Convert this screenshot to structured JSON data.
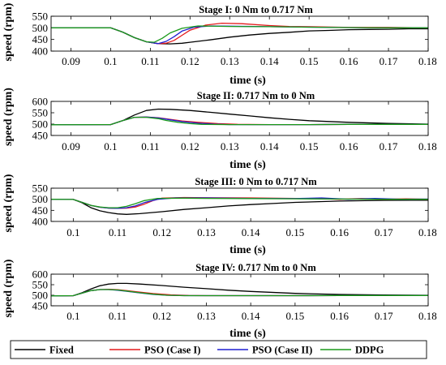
{
  "colors": {
    "Fixed": "#000000",
    "PSO (Case I)": "#e41a1c",
    "PSO (Case II)": "#1f1fd0",
    "DDPG": "#1a9a1a"
  },
  "legend": {
    "items": [
      "Fixed",
      "PSO (Case I)",
      "PSO (Case II)",
      "DDPG"
    ],
    "placement": "bottom"
  },
  "chart_data": [
    {
      "type": "line",
      "title": "Stage I: 0 Nm to 0.717 Nm",
      "xlabel": "time (s)",
      "ylabel": "speed (rpm)",
      "xlim": [
        0.085,
        0.18
      ],
      "ylim": [
        400,
        550
      ],
      "xticks": [
        "0.09",
        "0.1",
        "0.11",
        "0.12",
        "0.13",
        "0.14",
        "0.15",
        "0.16",
        "0.17",
        "0.18"
      ],
      "xtick_values": [
        0.09,
        0.1,
        0.11,
        0.12,
        0.13,
        0.14,
        0.15,
        0.16,
        0.17,
        0.18
      ],
      "yticks": [
        "400",
        "450",
        "500",
        "550"
      ],
      "ytick_values": [
        400,
        450,
        500,
        550
      ],
      "series": [
        {
          "name": "Fixed",
          "x": [
            0.085,
            0.1,
            0.103,
            0.106,
            0.109,
            0.112,
            0.115,
            0.118,
            0.12,
            0.125,
            0.13,
            0.135,
            0.14,
            0.145,
            0.15,
            0.155,
            0.16,
            0.165,
            0.17,
            0.175,
            0.18
          ],
          "y": [
            500,
            500,
            482,
            458,
            440,
            432,
            431,
            434,
            438,
            448,
            460,
            469,
            476,
            481,
            487,
            489,
            492,
            493,
            494,
            496,
            496
          ]
        },
        {
          "name": "PSO (Case I)",
          "x": [
            0.085,
            0.1,
            0.103,
            0.106,
            0.109,
            0.112,
            0.114,
            0.116,
            0.118,
            0.12,
            0.124,
            0.128,
            0.133,
            0.14,
            0.145,
            0.15,
            0.16,
            0.17,
            0.18
          ],
          "y": [
            500,
            500,
            482,
            458,
            440,
            432,
            434,
            446,
            468,
            490,
            512,
            520,
            518,
            510,
            506,
            505,
            502,
            502,
            500
          ]
        },
        {
          "name": "PSO (Case II)",
          "x": [
            0.085,
            0.1,
            0.103,
            0.106,
            0.109,
            0.112,
            0.114,
            0.116,
            0.118,
            0.121,
            0.125,
            0.13,
            0.14,
            0.15,
            0.16,
            0.17,
            0.18
          ],
          "y": [
            500,
            500,
            482,
            458,
            440,
            432,
            442,
            462,
            486,
            503,
            508,
            507,
            505,
            503,
            501,
            500,
            500
          ]
        },
        {
          "name": "DDPG",
          "x": [
            0.085,
            0.1,
            0.103,
            0.106,
            0.109,
            0.111,
            0.113,
            0.115,
            0.118,
            0.122,
            0.13,
            0.14,
            0.15,
            0.16,
            0.17,
            0.18
          ],
          "y": [
            500,
            500,
            482,
            458,
            440,
            438,
            455,
            478,
            498,
            508,
            506,
            505,
            503,
            501,
            500,
            500
          ]
        }
      ]
    },
    {
      "type": "line",
      "title": "Stage II: 0.717 Nm to 0 Nm",
      "xlabel": "time (s)",
      "ylabel": "speed (rpm)",
      "xlim": [
        0.085,
        0.18
      ],
      "ylim": [
        450,
        600
      ],
      "xticks": [
        "0.09",
        "0.1",
        "0.11",
        "0.12",
        "0.13",
        "0.14",
        "0.15",
        "0.16",
        "0.17",
        "0.18"
      ],
      "xtick_values": [
        0.09,
        0.1,
        0.11,
        0.12,
        0.13,
        0.14,
        0.15,
        0.16,
        0.17,
        0.18
      ],
      "yticks": [
        "450",
        "500",
        "550",
        "600"
      ],
      "ytick_values": [
        450,
        500,
        550,
        600
      ],
      "series": [
        {
          "name": "Fixed",
          "x": [
            0.085,
            0.1,
            0.103,
            0.106,
            0.109,
            0.112,
            0.115,
            0.12,
            0.125,
            0.13,
            0.135,
            0.14,
            0.145,
            0.15,
            0.16,
            0.17,
            0.18
          ],
          "y": [
            497,
            498,
            515,
            540,
            560,
            566,
            565,
            560,
            552,
            544,
            536,
            528,
            521,
            515,
            508,
            503,
            500
          ]
        },
        {
          "name": "PSO (Case I)",
          "x": [
            0.085,
            0.1,
            0.103,
            0.106,
            0.109,
            0.112,
            0.115,
            0.118,
            0.122,
            0.127,
            0.132,
            0.14,
            0.15,
            0.16,
            0.17,
            0.18
          ],
          "y": [
            497,
            498,
            515,
            530,
            531,
            528,
            521,
            514,
            508,
            502,
            499,
            498,
            498,
            499,
            499,
            499
          ]
        },
        {
          "name": "PSO (Case II)",
          "x": [
            0.085,
            0.1,
            0.103,
            0.106,
            0.109,
            0.112,
            0.115,
            0.118,
            0.122,
            0.126,
            0.13,
            0.14,
            0.15,
            0.16,
            0.17,
            0.18
          ],
          "y": [
            497,
            498,
            515,
            530,
            531,
            527,
            519,
            511,
            504,
            500,
            498,
            498,
            498,
            499,
            499,
            499
          ]
        },
        {
          "name": "DDPG",
          "x": [
            0.085,
            0.1,
            0.103,
            0.106,
            0.109,
            0.112,
            0.114,
            0.117,
            0.12,
            0.123,
            0.13,
            0.14,
            0.15,
            0.16,
            0.17,
            0.18
          ],
          "y": [
            497,
            498,
            515,
            530,
            530,
            524,
            516,
            508,
            502,
            499,
            498,
            498,
            498,
            499,
            499,
            499
          ]
        }
      ]
    },
    {
      "type": "line",
      "title": "Stage III: 0 Nm to 0.717 Nm",
      "xlabel": "time (s)",
      "ylabel": "speed (rpm)",
      "xlim": [
        0.095,
        0.18
      ],
      "ylim": [
        400,
        550
      ],
      "xticks": [
        "0.1",
        "0.11",
        "0.12",
        "0.13",
        "0.14",
        "0.15",
        "0.16",
        "0.17",
        "0.18"
      ],
      "xtick_values": [
        0.1,
        0.11,
        0.12,
        0.13,
        0.14,
        0.15,
        0.16,
        0.17,
        0.18
      ],
      "yticks": [
        "400",
        "450",
        "500",
        "550"
      ],
      "ytick_values": [
        400,
        450,
        500,
        550
      ],
      "series": [
        {
          "name": "Fixed",
          "x": [
            0.095,
            0.1,
            0.102,
            0.104,
            0.106,
            0.108,
            0.11,
            0.112,
            0.115,
            0.12,
            0.125,
            0.13,
            0.135,
            0.14,
            0.145,
            0.15,
            0.16,
            0.17,
            0.18
          ],
          "y": [
            500,
            499,
            484,
            462,
            448,
            440,
            434,
            432,
            435,
            444,
            454,
            462,
            470,
            476,
            481,
            486,
            492,
            495,
            496
          ]
        },
        {
          "name": "PSO (Case I)",
          "x": [
            0.095,
            0.1,
            0.102,
            0.104,
            0.106,
            0.108,
            0.11,
            0.112,
            0.114,
            0.116,
            0.118,
            0.12,
            0.125,
            0.13,
            0.14,
            0.15,
            0.155,
            0.16,
            0.165,
            0.17,
            0.175,
            0.18
          ],
          "y": [
            500,
            499,
            486,
            472,
            464,
            460,
            459,
            460,
            465,
            478,
            494,
            505,
            508,
            507,
            506,
            504,
            503,
            500,
            503,
            500,
            502,
            500
          ]
        },
        {
          "name": "PSO (Case II)",
          "x": [
            0.095,
            0.1,
            0.102,
            0.104,
            0.106,
            0.108,
            0.11,
            0.112,
            0.114,
            0.116,
            0.119,
            0.123,
            0.13,
            0.14,
            0.15,
            0.156,
            0.162,
            0.168,
            0.174,
            0.18
          ],
          "y": [
            500,
            499,
            486,
            472,
            464,
            460,
            459,
            462,
            470,
            485,
            500,
            506,
            506,
            504,
            503,
            506,
            500,
            504,
            500,
            501
          ]
        },
        {
          "name": "DDPG",
          "x": [
            0.095,
            0.1,
            0.102,
            0.104,
            0.106,
            0.108,
            0.11,
            0.112,
            0.114,
            0.116,
            0.119,
            0.125,
            0.13,
            0.14,
            0.15,
            0.16,
            0.17,
            0.18
          ],
          "y": [
            500,
            499,
            486,
            472,
            465,
            462,
            462,
            468,
            480,
            494,
            504,
            505,
            504,
            503,
            502,
            501,
            500,
            500
          ]
        }
      ]
    },
    {
      "type": "line",
      "title": "Stage IV: 0.717 Nm to 0 Nm",
      "xlabel": "time (s)",
      "ylabel": "speed (rpm)",
      "xlim": [
        0.095,
        0.18
      ],
      "ylim": [
        450,
        600
      ],
      "xticks": [
        "0.1",
        "0.11",
        "0.12",
        "0.13",
        "0.14",
        "0.15",
        "0.16",
        "0.17",
        "0.18"
      ],
      "xtick_values": [
        0.1,
        0.11,
        0.12,
        0.13,
        0.14,
        0.15,
        0.16,
        0.17,
        0.18
      ],
      "yticks": [
        "450",
        "500",
        "550",
        "600"
      ],
      "ytick_values": [
        450,
        500,
        550,
        600
      ],
      "series": [
        {
          "name": "Fixed",
          "x": [
            0.095,
            0.1,
            0.102,
            0.104,
            0.106,
            0.108,
            0.11,
            0.112,
            0.115,
            0.12,
            0.125,
            0.13,
            0.135,
            0.14,
            0.15,
            0.16,
            0.17,
            0.18
          ],
          "y": [
            497,
            498,
            512,
            530,
            545,
            553,
            556,
            556,
            553,
            546,
            538,
            531,
            524,
            518,
            509,
            504,
            501,
            500
          ]
        },
        {
          "name": "PSO (Case I)",
          "x": [
            0.095,
            0.1,
            0.102,
            0.104,
            0.106,
            0.108,
            0.11,
            0.112,
            0.115,
            0.118,
            0.122,
            0.126,
            0.13,
            0.14,
            0.15,
            0.16,
            0.17,
            0.18
          ],
          "y": [
            497,
            498,
            510,
            522,
            527,
            528,
            526,
            522,
            515,
            508,
            502,
            499,
            498,
            498,
            498,
            499,
            499,
            499
          ]
        },
        {
          "name": "PSO (Case II)",
          "x": [
            0.095,
            0.1,
            0.102,
            0.104,
            0.106,
            0.108,
            0.11,
            0.112,
            0.115,
            0.118,
            0.121,
            0.125,
            0.13,
            0.14,
            0.15,
            0.16,
            0.17,
            0.18
          ],
          "y": [
            497,
            498,
            510,
            522,
            527,
            527,
            524,
            519,
            511,
            504,
            500,
            498,
            498,
            498,
            498,
            499,
            499,
            499
          ]
        },
        {
          "name": "DDPG",
          "x": [
            0.095,
            0.1,
            0.102,
            0.104,
            0.106,
            0.108,
            0.11,
            0.112,
            0.115,
            0.118,
            0.121,
            0.125,
            0.13,
            0.14,
            0.15,
            0.16,
            0.17,
            0.18
          ],
          "y": [
            497,
            498,
            510,
            522,
            527,
            527,
            525,
            520,
            512,
            505,
            500,
            498,
            498,
            498,
            498,
            499,
            499,
            499
          ]
        }
      ]
    }
  ]
}
